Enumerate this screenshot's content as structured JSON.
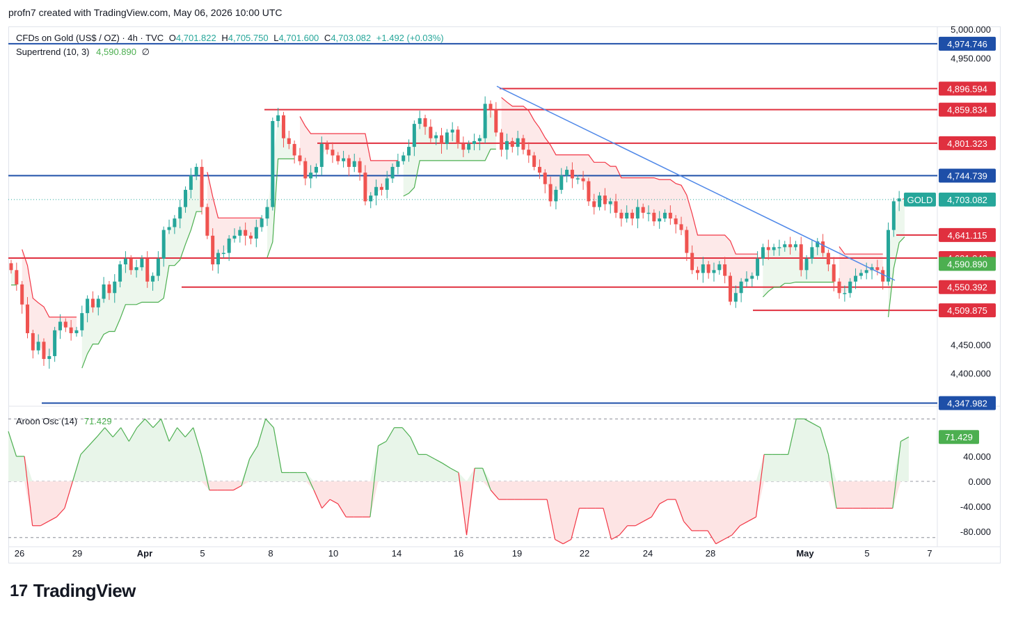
{
  "header": {
    "text": "profn7 created with TradingView.com, May 06, 2026 10:00 UTC"
  },
  "legend": {
    "symbol": "CFDs on Gold (US$ / OZ) · 4h · TVC",
    "open_label": "O",
    "open": "4,701.822",
    "high_label": "H",
    "high": "4,705.750",
    "low_label": "L",
    "low": "4,701.600",
    "close_label": "C",
    "close": "4,703.082",
    "change": "+1.492 (+0.03%)",
    "supertrend_label": "Supertrend (10, 3)",
    "supertrend_value": "4,590.890",
    "supertrend_suffix": "∅",
    "aroon_label": "Aroon Osc (14)",
    "aroon_value": "71.429"
  },
  "logo": {
    "text": "TradingView"
  },
  "colors": {
    "up": "#26a69a",
    "down": "#ef5350",
    "st_up": "#4caf50",
    "st_down": "#f23645",
    "st_up_fill": "#e8f5e9",
    "st_down_fill": "#fde4e4",
    "blue_line": "#1e4fa8",
    "red_line": "#e0303f",
    "trend": "#4e87e8"
  },
  "chart_data": {
    "type": "candlestick",
    "x_ticks": [
      "26",
      "29",
      "Apr",
      "5",
      "8",
      "10",
      "14",
      "16",
      "19",
      "22",
      "24",
      "28",
      "May",
      "5",
      "7"
    ],
    "price_axis": [
      5000,
      4950,
      4450,
      4400
    ],
    "price_axis_labels": [
      "5,000.000",
      "4,950.000",
      "4,450.000",
      "4,400.000"
    ],
    "ylim": [
      4345,
      5005
    ],
    "h_levels": [
      {
        "value": 4974.746,
        "label": "4,974.746",
        "color": "blue"
      },
      {
        "value": 4896.594,
        "label": "4,896.594",
        "color": "red"
      },
      {
        "value": 4859.834,
        "label": "4,859.834",
        "color": "red"
      },
      {
        "value": 4801.323,
        "label": "4,801.323",
        "color": "red"
      },
      {
        "value": 4744.739,
        "label": "4,744.739",
        "color": "blue"
      },
      {
        "value": 4641.115,
        "label": "4,641.115",
        "color": "red"
      },
      {
        "value": 4601.042,
        "label": "4,601.042",
        "color": "red"
      },
      {
        "value": 4550.392,
        "label": "4,550.392",
        "color": "red"
      },
      {
        "value": 4509.875,
        "label": "4,509.875",
        "color": "red"
      },
      {
        "value": 4347.982,
        "label": "4,347.982",
        "color": "blue"
      }
    ],
    "last_price": {
      "label": "GOLD",
      "value": "4,703.082"
    },
    "supertrend_last": {
      "value": "4,590.890"
    },
    "series_close": [
      4580,
      4555,
      4520,
      4470,
      4440,
      4455,
      4425,
      4430,
      4475,
      4490,
      4480,
      4470,
      4475,
      4505,
      4530,
      4515,
      4530,
      4555,
      4540,
      4560,
      4590,
      4600,
      4580,
      4585,
      4600,
      4560,
      4570,
      4600,
      4650,
      4655,
      4670,
      4690,
      4720,
      4745,
      4760,
      4690,
      4640,
      4590,
      4610,
      4610,
      4635,
      4640,
      4650,
      4640,
      4635,
      4655,
      4670,
      4690,
      4840,
      4850,
      4810,
      4800,
      4780,
      4770,
      4740,
      4750,
      4760,
      4800,
      4790,
      4780,
      4770,
      4775,
      4760,
      4770,
      4750,
      4700,
      4710,
      4725,
      4720,
      4740,
      4760,
      4770,
      4780,
      4795,
      4835,
      4845,
      4830,
      4810,
      4815,
      4800,
      4820,
      4825,
      4800,
      4790,
      4800,
      4805,
      4810,
      4870,
      4860,
      4820,
      4790,
      4805,
      4795,
      4810,
      4790,
      4780,
      4760,
      4750,
      4730,
      4700,
      4720,
      4745,
      4755,
      4740,
      4740,
      4735,
      4700,
      4690,
      4710,
      4695,
      4700,
      4680,
      4670,
      4680,
      4670,
      4690,
      4680,
      4680,
      4665,
      4670,
      4680,
      4670,
      4660,
      4650,
      4610,
      4580,
      4575,
      4590,
      4575,
      4580,
      4590,
      4570,
      4525,
      4540,
      4560,
      4565,
      4570,
      4600,
      4620,
      4615,
      4620,
      4620,
      4625,
      4620,
      4625,
      4580,
      4600,
      4620,
      4630,
      4610,
      4590,
      4560,
      4540,
      4540,
      4560,
      4570,
      4575,
      4580,
      4585,
      4580,
      4560,
      4650,
      4700,
      4705,
      4703
    ],
    "aroon_osc": [
      80,
      40,
      40,
      -71,
      -71,
      -64,
      -57,
      -43,
      0,
      43,
      57,
      71,
      86,
      71,
      86,
      64,
      86,
      100,
      86,
      100,
      64,
      86,
      71,
      86,
      43,
      -14,
      -14,
      -14,
      -14,
      -7,
      36,
      57,
      100,
      86,
      14,
      14,
      14,
      14,
      -14,
      -43,
      -29,
      -36,
      -57,
      -57,
      -57,
      -57,
      57,
      64,
      86,
      86,
      71,
      43,
      43,
      36,
      29,
      21,
      14,
      -86,
      21,
      21,
      -14,
      -29,
      -29,
      -29,
      -29,
      -29,
      -29,
      -29,
      -93,
      -100,
      -93,
      -43,
      -43,
      -43,
      -43,
      -93,
      -86,
      -71,
      -71,
      -64,
      -57,
      -36,
      -29,
      -29,
      -64,
      -79,
      -79,
      -79,
      -100,
      -93,
      -86,
      -71,
      -64,
      -57,
      43,
      43,
      43,
      43,
      100,
      100,
      93,
      86,
      43,
      -43,
      -43,
      -43,
      -43,
      -43,
      -43,
      -43,
      -43,
      64,
      71
    ],
    "aroon_axis": [
      40,
      0,
      -40,
      -80
    ],
    "aroon_axis_labels": [
      "40.000",
      "0.000",
      "-40.000",
      "-80.000"
    ],
    "aroon_ylim": [
      -98,
      118
    ]
  }
}
